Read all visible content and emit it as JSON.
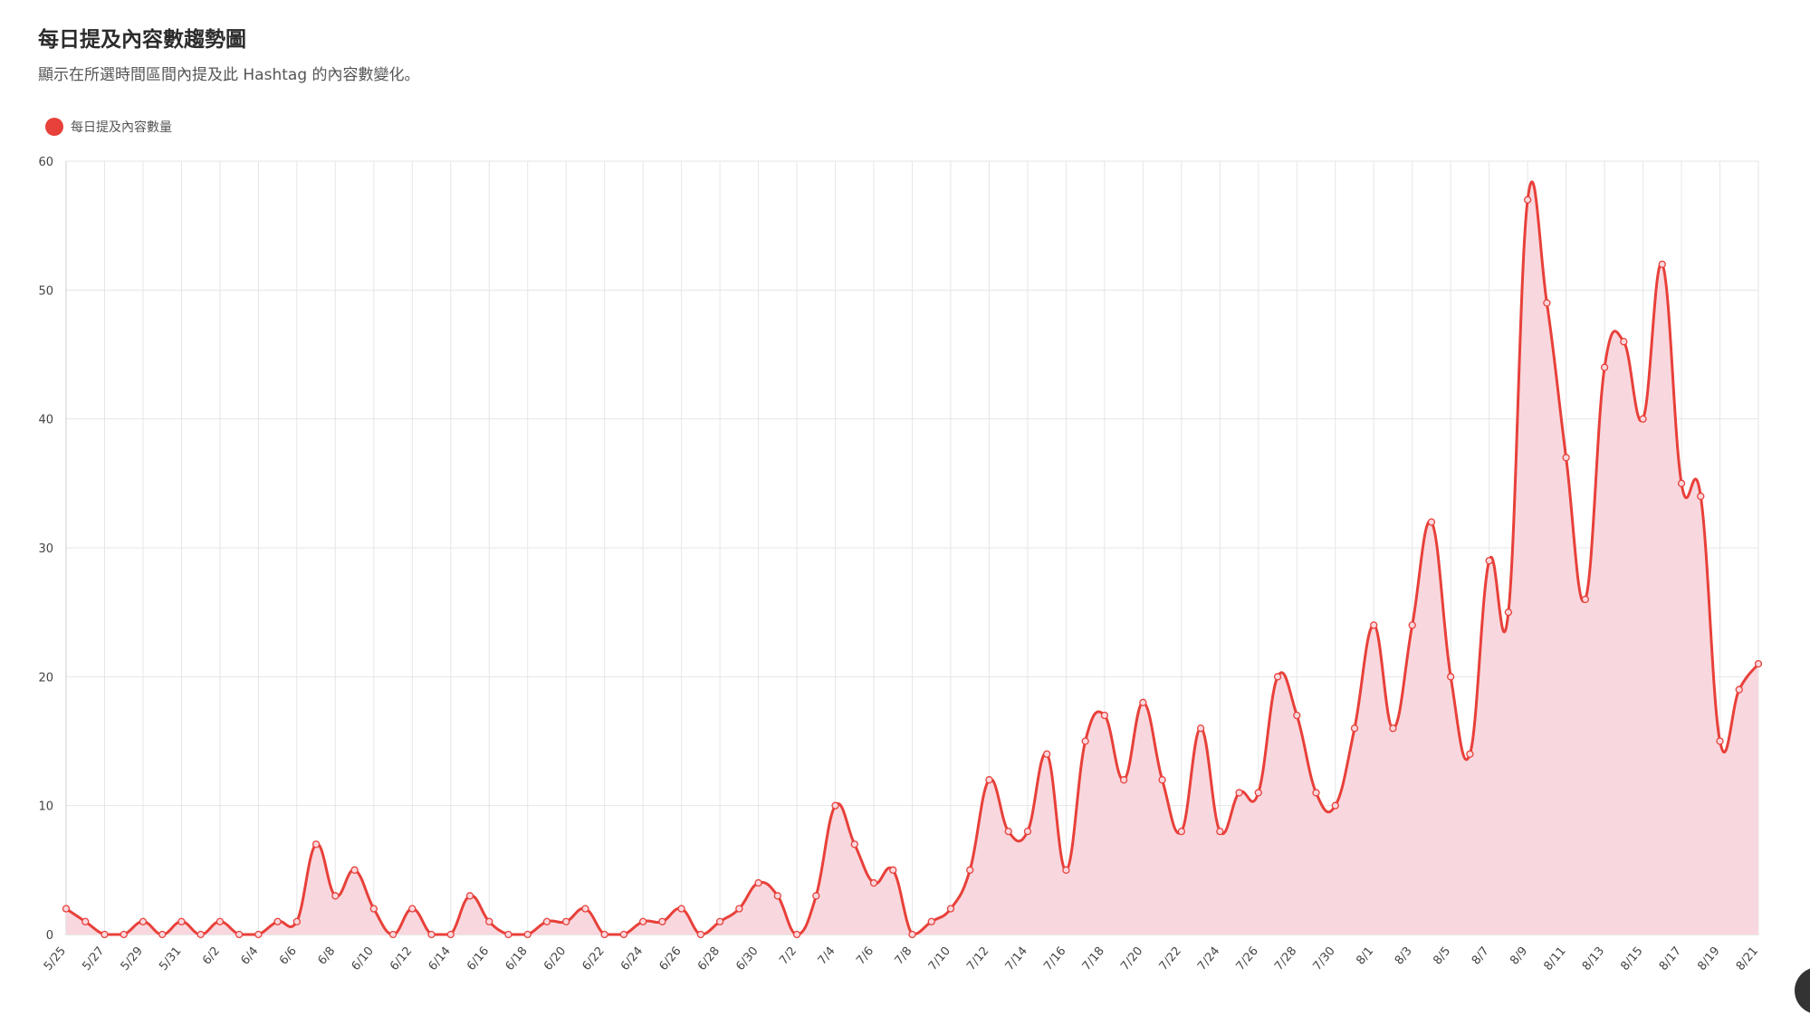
{
  "header": {
    "title": "每日提及內容數趨勢圖",
    "subtitle": "顯示在所選時間區間內提及此 Hashtag 的內容數變化。"
  },
  "colors": {
    "line": "#e8403a",
    "fill": "#f8d8de",
    "grid": "#e6e6e6",
    "axis": "#444444"
  },
  "chart_data": {
    "type": "area",
    "title": "每日提及內容數趨勢圖",
    "series": [
      {
        "name": "每日提及內容數量",
        "values": [
          2,
          1,
          0,
          0,
          1,
          0,
          1,
          0,
          1,
          0,
          0,
          1,
          1,
          7,
          3,
          5,
          2,
          0,
          2,
          0,
          0,
          3,
          1,
          0,
          0,
          1,
          1,
          2,
          0,
          0,
          1,
          1,
          2,
          0,
          1,
          2,
          4,
          3,
          0,
          3,
          10,
          7,
          4,
          5,
          0,
          1,
          2,
          5,
          12,
          8,
          8,
          14,
          5,
          15,
          17,
          12,
          18,
          12,
          8,
          16,
          8,
          11,
          11,
          20,
          17,
          11,
          10,
          16,
          24,
          16,
          24,
          32,
          20,
          14,
          29,
          25,
          57,
          49,
          37,
          26,
          44,
          46,
          40,
          52,
          35,
          34,
          15,
          19,
          21
        ]
      }
    ],
    "x_tick_labels": [
      "5/25",
      "5/27",
      "5/29",
      "5/31",
      "6/2",
      "6/4",
      "6/6",
      "6/8",
      "6/10",
      "6/12",
      "6/14",
      "6/16",
      "6/18",
      "6/20",
      "6/22",
      "6/24",
      "6/26",
      "6/28",
      "6/30",
      "7/2",
      "7/4",
      "7/6",
      "7/8",
      "7/10",
      "7/12",
      "7/14",
      "7/16",
      "7/18",
      "7/20",
      "7/22",
      "7/24",
      "7/26",
      "7/28",
      "7/30",
      "8/1",
      "8/3",
      "8/5",
      "8/7",
      "8/9",
      "8/11",
      "8/13",
      "8/15",
      "8/17",
      "8/19",
      "8/21"
    ],
    "y_ticks": [
      "0",
      "10",
      "20",
      "30",
      "40",
      "50",
      "60"
    ],
    "ylim": [
      0,
      60
    ],
    "grid": true,
    "legend": "top-left"
  }
}
